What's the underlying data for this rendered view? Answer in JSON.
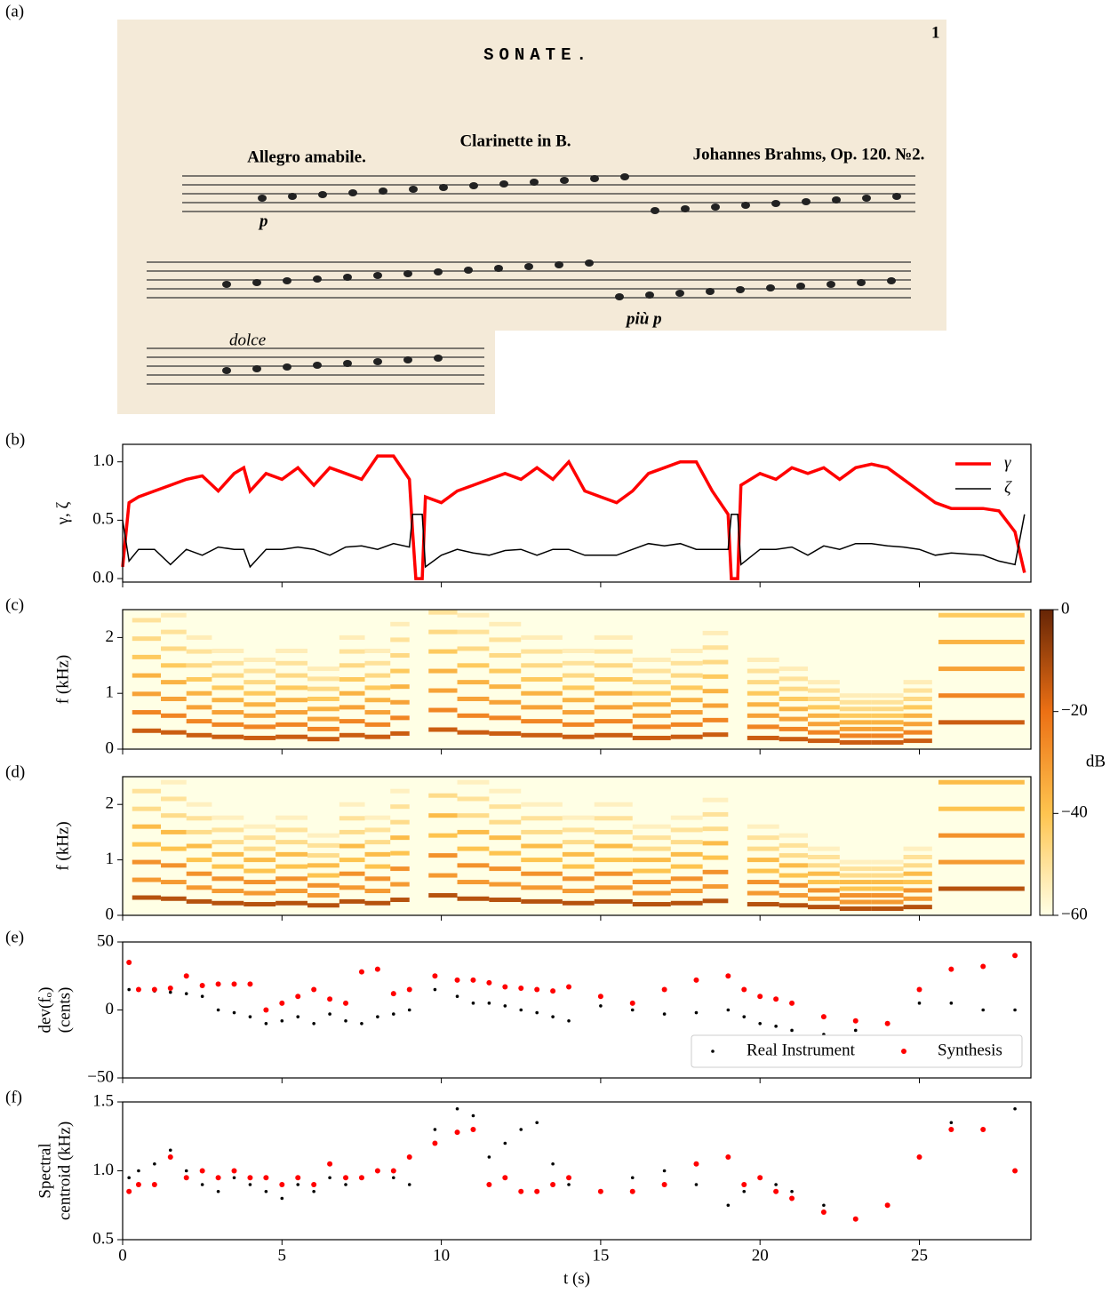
{
  "chart_data": [
    {
      "type": "score",
      "label": "(a)",
      "page_number": "1",
      "title": "SONATE.",
      "subtitle": "Clarinette in B.",
      "tempo": "Allegro amabile.",
      "composer": "Johannes Brahms, Op. 120. №2.",
      "dynamics": [
        "p",
        "più p"
      ],
      "expression": "dolce"
    },
    {
      "type": "line",
      "label": "(b)",
      "ylabel": "γ, ζ",
      "x": [
        0,
        0.2,
        0.5,
        1,
        1.5,
        2,
        2.5,
        3,
        3.5,
        3.8,
        4,
        4.5,
        5,
        5.5,
        6,
        6.5,
        7,
        7.5,
        8,
        8.5,
        9,
        9.1,
        9.2,
        9.4,
        9.5,
        10,
        10.5,
        11,
        11.5,
        12,
        12.5,
        13,
        13.5,
        14,
        14.5,
        15,
        15.5,
        16,
        16.5,
        17,
        17.5,
        18,
        18.5,
        19,
        19.1,
        19.3,
        19.4,
        20,
        20.5,
        21,
        21.5,
        22,
        22.5,
        23,
        23.5,
        24,
        24.5,
        25,
        25.5,
        26,
        27,
        27.5,
        28,
        28.3
      ],
      "series": [
        {
          "name": "γ",
          "color": "#ff0000",
          "width": 3.5,
          "values": [
            0.1,
            0.65,
            0.7,
            0.75,
            0.8,
            0.85,
            0.88,
            0.75,
            0.9,
            0.95,
            0.75,
            0.9,
            0.85,
            0.95,
            0.8,
            0.95,
            0.9,
            0.85,
            1.05,
            1.05,
            0.85,
            0.4,
            0,
            0,
            0.7,
            0.65,
            0.75,
            0.8,
            0.85,
            0.9,
            0.85,
            0.95,
            0.85,
            1.0,
            0.75,
            0.7,
            0.65,
            0.75,
            0.9,
            0.95,
            1.0,
            1.0,
            0.75,
            0.55,
            0,
            0,
            0.8,
            0.9,
            0.85,
            0.95,
            0.9,
            0.95,
            0.85,
            0.95,
            0.98,
            0.95,
            0.85,
            0.75,
            0.65,
            0.6,
            0.6,
            0.58,
            0.4,
            0.05
          ]
        },
        {
          "name": "ζ",
          "color": "#000000",
          "width": 1.5,
          "values": [
            0.5,
            0.15,
            0.25,
            0.25,
            0.12,
            0.25,
            0.2,
            0.27,
            0.25,
            0.25,
            0.1,
            0.25,
            0.25,
            0.27,
            0.25,
            0.2,
            0.27,
            0.28,
            0.25,
            0.3,
            0.27,
            0.55,
            0.55,
            0.55,
            0.1,
            0.2,
            0.25,
            0.22,
            0.2,
            0.24,
            0.25,
            0.2,
            0.25,
            0.25,
            0.2,
            0.2,
            0.2,
            0.25,
            0.3,
            0.28,
            0.3,
            0.25,
            0.25,
            0.25,
            0.55,
            0.55,
            0.12,
            0.25,
            0.25,
            0.27,
            0.2,
            0.28,
            0.25,
            0.3,
            0.3,
            0.28,
            0.27,
            0.25,
            0.2,
            0.22,
            0.2,
            0.15,
            0.12,
            0.55
          ]
        }
      ],
      "xlim": [
        0,
        28.5
      ],
      "xticks": [
        0,
        5,
        10,
        15,
        20,
        25
      ],
      "ylim": [
        -0.03,
        1.15
      ],
      "yticks": [
        {
          "value": 0,
          "label": "0.0"
        },
        {
          "value": 0.5,
          "label": "0.5"
        },
        {
          "value": 1,
          "label": "1.0"
        }
      ],
      "legend": "upper right"
    },
    {
      "type": "heatmap",
      "label": "(c)",
      "ylabel": "f (kHz)",
      "onsets": [
        0.3,
        1.2,
        2.0,
        2.8,
        3.8,
        4.8,
        5.8,
        6.8,
        7.6,
        8.4,
        9.6,
        10.5,
        11.5,
        12.5,
        13.8,
        14.8,
        16,
        17.2,
        18.2,
        19.6,
        20.6,
        21.5,
        22.5,
        23.5,
        24.5,
        25.6
      ],
      "offsets": [
        1.2,
        2.0,
        2.8,
        3.8,
        4.8,
        5.8,
        6.8,
        7.6,
        8.4,
        9.0,
        10.5,
        11.5,
        12.5,
        13.8,
        14.8,
        16,
        17.2,
        18.2,
        19.0,
        20.6,
        21.5,
        22.5,
        23.5,
        24.5,
        25.4,
        28.3
      ],
      "f0": [
        0.33,
        0.3,
        0.25,
        0.22,
        0.2,
        0.22,
        0.18,
        0.25,
        0.22,
        0.28,
        0.35,
        0.3,
        0.28,
        0.25,
        0.22,
        0.25,
        0.2,
        0.22,
        0.26,
        0.2,
        0.18,
        0.15,
        0.12,
        0.12,
        0.15,
        0.48
      ],
      "harmonic_db": [
        -15,
        -25,
        -32,
        -36,
        -42,
        -47,
        -50,
        -54
      ],
      "colormap": [
        "#ffffe5",
        "#fec44f",
        "#ec7014",
        "#662506"
      ],
      "xlim": [
        0,
        28.5
      ],
      "xticks": [
        0,
        5,
        10,
        15,
        20,
        25
      ],
      "ylim": [
        0,
        2.5
      ],
      "yticks": [
        0,
        1,
        2
      ],
      "colorbar": {
        "label": "dB",
        "lim": [
          -60,
          0
        ],
        "ticks": [
          0,
          {
            "value": -20,
            "label": "−20"
          },
          {
            "value": -40,
            "label": "−40"
          },
          {
            "value": -60,
            "label": "−60"
          }
        ]
      }
    },
    {
      "type": "heatmap",
      "label": "(d)",
      "ylabel": "f (kHz)",
      "onsets": [
        0.3,
        1.2,
        2.0,
        2.8,
        3.8,
        4.8,
        5.8,
        6.8,
        7.6,
        8.4,
        9.6,
        10.5,
        11.5,
        12.5,
        13.8,
        14.8,
        16,
        17.2,
        18.2,
        19.6,
        20.6,
        21.5,
        22.5,
        23.5,
        24.5,
        25.6
      ],
      "offsets": [
        1.2,
        2.0,
        2.8,
        3.8,
        4.8,
        5.8,
        6.8,
        7.6,
        8.4,
        9.0,
        10.5,
        11.5,
        12.5,
        13.8,
        14.8,
        16,
        17.2,
        18.2,
        19.0,
        20.6,
        21.5,
        22.5,
        23.5,
        24.5,
        25.4,
        28.3
      ],
      "f0": [
        0.32,
        0.3,
        0.25,
        0.22,
        0.2,
        0.22,
        0.18,
        0.25,
        0.22,
        0.28,
        0.36,
        0.3,
        0.28,
        0.25,
        0.22,
        0.25,
        0.2,
        0.22,
        0.26,
        0.2,
        0.18,
        0.15,
        0.12,
        0.12,
        0.15,
        0.48
      ],
      "harmonic_db": [
        -12,
        -30,
        -28,
        -40,
        -38,
        -48,
        -50,
        -55
      ],
      "colormap": [
        "#ffffe5",
        "#fec44f",
        "#ec7014",
        "#662506"
      ],
      "xlim": [
        0,
        28.5
      ],
      "xticks": [
        0,
        5,
        10,
        15,
        20,
        25
      ],
      "ylim": [
        0,
        2.5
      ],
      "yticks": [
        0,
        1,
        2
      ]
    },
    {
      "type": "scatter",
      "label": "(e)",
      "ylabel": [
        "dev(fₒ)",
        "(cents)"
      ],
      "x": [
        0.2,
        0.5,
        1,
        1.5,
        2,
        2.5,
        3,
        3.5,
        4,
        4.5,
        5,
        5.5,
        6,
        6.5,
        7,
        7.5,
        8,
        8.5,
        9,
        9.8,
        10.5,
        11,
        11.5,
        12,
        12.5,
        13,
        13.5,
        14,
        15,
        16,
        17,
        18,
        19,
        19.5,
        20,
        20.5,
        21,
        22,
        23,
        24,
        25,
        26,
        27,
        28
      ],
      "series": [
        {
          "name": "Real Instrument",
          "color": "#000000",
          "size": 1.8,
          "values": [
            15,
            15,
            14,
            13,
            12,
            10,
            0,
            -2,
            -5,
            -10,
            -8,
            -5,
            -10,
            -3,
            -8,
            -10,
            -5,
            -3,
            0,
            15,
            10,
            5,
            5,
            3,
            0,
            -2,
            -5,
            -8,
            3,
            0,
            -3,
            -2,
            0,
            -5,
            -10,
            -12,
            -15,
            -18,
            -15,
            -10,
            5,
            5,
            0,
            0
          ]
        },
        {
          "name": "Synthesis",
          "color": "#ff0000",
          "size": 3,
          "values": [
            35,
            15,
            15,
            16,
            25,
            18,
            19,
            19,
            19,
            0,
            5,
            10,
            15,
            8,
            5,
            28,
            30,
            12,
            15,
            25,
            22,
            22,
            20,
            17,
            16,
            15,
            14,
            17,
            10,
            5,
            15,
            22,
            25,
            15,
            10,
            8,
            5,
            -5,
            -8,
            -10,
            15,
            30,
            32,
            40
          ]
        }
      ],
      "xlim": [
        0,
        28.5
      ],
      "xticks": [
        0,
        5,
        10,
        15,
        20,
        25
      ],
      "ylim": [
        -50,
        50
      ],
      "yticks": [
        {
          "value": -50,
          "label": "−50"
        },
        0,
        50
      ],
      "legend": "lower right"
    },
    {
      "type": "scatter",
      "label": "(f)",
      "ylabel": [
        "Spectral",
        "centroid (kHz)"
      ],
      "xlabel": "t (s)",
      "x": [
        0.2,
        0.5,
        1,
        1.5,
        2,
        2.5,
        3,
        3.5,
        4,
        4.5,
        5,
        5.5,
        6,
        6.5,
        7,
        7.5,
        8,
        8.5,
        9,
        9.8,
        10.5,
        11,
        11.5,
        12,
        12.5,
        13,
        13.5,
        14,
        15,
        16,
        17,
        18,
        19,
        19.5,
        20,
        20.5,
        21,
        22,
        23,
        24,
        25,
        26,
        27,
        28
      ],
      "series": [
        {
          "name": "Real Instrument",
          "color": "#000000",
          "size": 1.8,
          "values": [
            0.95,
            1.0,
            1.05,
            1.15,
            1.0,
            0.9,
            0.85,
            0.95,
            0.9,
            0.85,
            0.8,
            0.9,
            0.85,
            0.95,
            0.9,
            0.95,
            1.0,
            0.95,
            0.9,
            1.3,
            1.45,
            1.4,
            1.1,
            1.2,
            1.3,
            1.35,
            1.05,
            0.9,
            0.85,
            0.95,
            1.0,
            0.9,
            0.75,
            0.85,
            0.95,
            0.9,
            0.85,
            0.75,
            0.65,
            0.75,
            1.1,
            1.35,
            1.3,
            1.45
          ]
        },
        {
          "name": "Synthesis",
          "color": "#ff0000",
          "size": 3,
          "values": [
            0.85,
            0.9,
            0.9,
            1.1,
            0.95,
            1.0,
            0.95,
            1.0,
            0.95,
            0.95,
            0.9,
            0.95,
            0.9,
            1.05,
            0.95,
            0.95,
            1.0,
            1.0,
            1.1,
            1.2,
            1.28,
            1.3,
            0.9,
            0.95,
            0.85,
            0.85,
            0.9,
            0.95,
            0.85,
            0.85,
            0.9,
            1.05,
            1.1,
            0.9,
            0.95,
            0.85,
            0.8,
            0.7,
            0.65,
            0.75,
            1.1,
            1.3,
            1.3,
            1.0
          ]
        }
      ],
      "xlim": [
        0,
        28.5
      ],
      "xticks": [
        0,
        5,
        10,
        15,
        20,
        25
      ],
      "ylim": [
        0.5,
        1.5
      ],
      "yticks": [
        {
          "value": 0.5,
          "label": "0.5"
        },
        {
          "value": 1,
          "label": "1.0"
        },
        {
          "value": 1.5,
          "label": "1.5"
        }
      ],
      "show_xtick_labels": true
    }
  ]
}
